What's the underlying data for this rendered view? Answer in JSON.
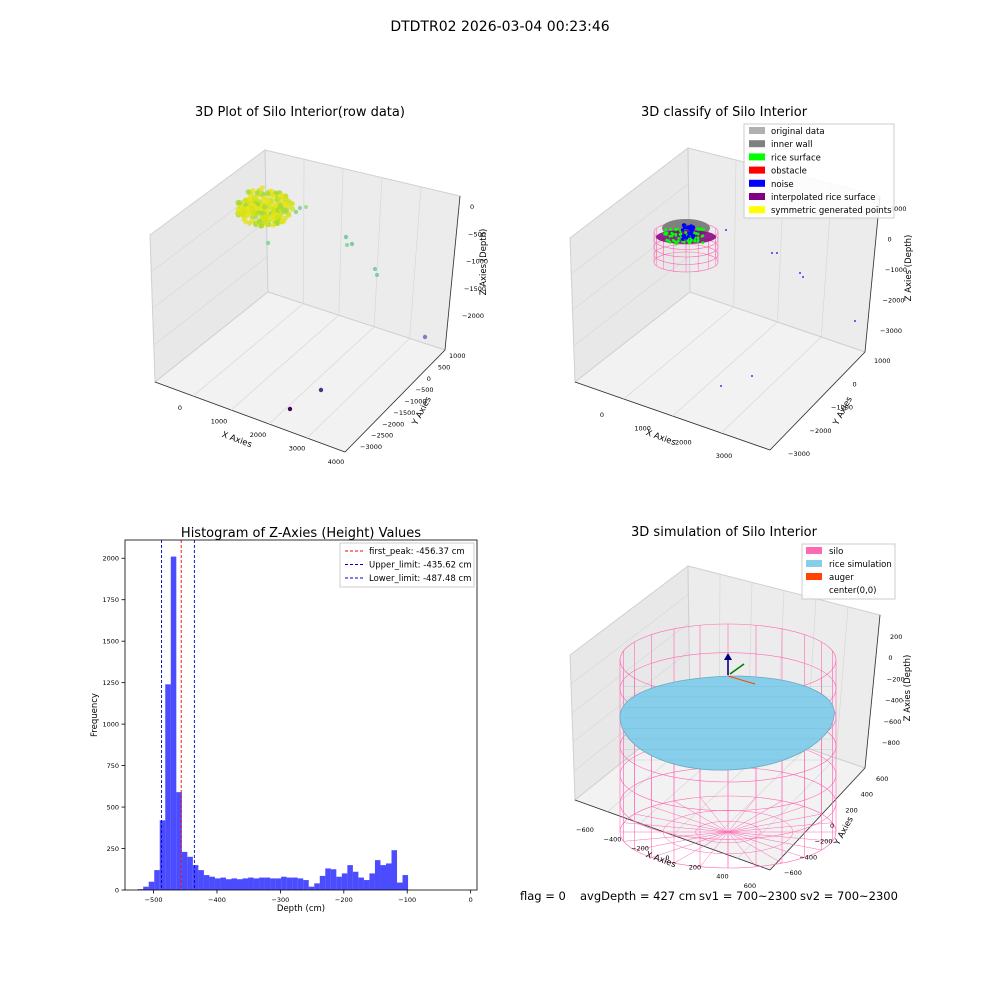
{
  "suptitle": "DTDTR02 2026-03-04 00:23:46",
  "status": {
    "flag": "flag = 0",
    "avg": "avgDepth = 427 cm",
    "sv1": "sv1 = 700~2300",
    "sv2": "sv2 = 700~2300"
  },
  "colors": {
    "hist_bar": "#0000ff",
    "peak_line": "#ff0000",
    "limit_line": "#0000cc",
    "silo": "#ff69b4",
    "rice_sim": "#87ceeb",
    "auger": "#ff4500",
    "original": "#b0b0b0",
    "inner_wall": "#808080",
    "rice_surface": "#00ff00",
    "obstacle": "#ff0000",
    "noise": "#0000ff",
    "interpolated": "#800080",
    "symmetric": "#ffff00",
    "pane": "#f2f2f2"
  },
  "chart_data": [
    {
      "type": "scatter",
      "projection": "3d",
      "title": "3D Plot of Silo Interior(row data)",
      "xlabel": "X Axies",
      "ylabel": "Y Axies",
      "zlabel": "Z Axies (Depth)",
      "x_ticks": [
        "0",
        "1000",
        "2000",
        "3000",
        "4000"
      ],
      "y_ticks": [
        "1000",
        "500",
        "0",
        "−500",
        "−1000",
        "−1500",
        "−2000",
        "−2500",
        "−3000"
      ],
      "z_ticks": [
        "0",
        "−500",
        "−1000",
        "−1500",
        "−2000"
      ],
      "colormap": "viridis",
      "cluster": {
        "x_range": [
          -300,
          400
        ],
        "y_range": [
          -500,
          500
        ],
        "z_range": [
          -600,
          -300
        ]
      },
      "points": [
        {
          "x": 900,
          "y": 300,
          "z": -900
        },
        {
          "x": 1100,
          "y": 250,
          "z": -1000
        },
        {
          "x": 1300,
          "y": 200,
          "z": -1050
        },
        {
          "x": 1950,
          "y": -200,
          "z": -1300
        },
        {
          "x": 2100,
          "y": -350,
          "z": -1350
        },
        {
          "x": 3300,
          "y": -1300,
          "z": -2000
        },
        {
          "x": 2800,
          "y": -2300,
          "z": -2200
        },
        {
          "x": 2600,
          "y": -2800,
          "z": -2300
        }
      ]
    },
    {
      "type": "scatter",
      "projection": "3d",
      "title": "3D classify of Silo Interior",
      "xlabel": "X Axies",
      "ylabel": "Y Axies",
      "zlabel": "Z Axies (Depth)",
      "x_ticks": [
        "0",
        "1000",
        "2000",
        "3000"
      ],
      "y_ticks": [
        "1000",
        "0",
        "−1000",
        "−2000",
        "−3000"
      ],
      "z_ticks": [
        "1000",
        "0",
        "−1000",
        "−2000",
        "−3000"
      ],
      "legend": [
        {
          "label": "original data",
          "color": "#b0b0b0"
        },
        {
          "label": "inner wall",
          "color": "#808080"
        },
        {
          "label": "rice surface",
          "color": "#00ff00"
        },
        {
          "label": "obstacle",
          "color": "#ff0000"
        },
        {
          "label": "noise",
          "color": "#0000ff"
        },
        {
          "label": "interpolated rice surface",
          "color": "#800080"
        },
        {
          "label": "symmetric generated points",
          "color": "#ffff00"
        }
      ],
      "legend_loc": "upper right"
    },
    {
      "type": "bar",
      "title": "Histogram of Z-Axies (Height) Values",
      "xlabel": "Depth (cm)",
      "ylabel": "Frequency",
      "xlim": [
        -545,
        10
      ],
      "ylim": [
        0,
        2110
      ],
      "x_ticks": [
        -500,
        -400,
        -300,
        -200,
        -100,
        0
      ],
      "x_tick_labels": [
        "−500",
        "−400",
        "−300",
        "−200",
        "−100",
        "0"
      ],
      "y_ticks": [
        0,
        250,
        500,
        750,
        1000,
        1250,
        1500,
        1750,
        2000
      ],
      "bin_start": -525,
      "bin_width": 8.7,
      "counts": [
        5,
        20,
        50,
        120,
        420,
        1240,
        2010,
        590,
        230,
        200,
        150,
        120,
        90,
        80,
        70,
        75,
        65,
        70,
        65,
        70,
        75,
        70,
        75,
        75,
        70,
        70,
        80,
        75,
        75,
        70,
        60,
        20,
        40,
        85,
        130,
        125,
        80,
        100,
        150,
        110,
        75,
        60,
        100,
        180,
        150,
        160,
        240,
        45,
        90
      ],
      "vlines": [
        {
          "x": -456.37,
          "label": "first_peak: -456.37 cm",
          "color": "#ff0000"
        },
        {
          "x": -435.62,
          "label": "Upper_limit: -435.62 cm",
          "color": "#0000cc"
        },
        {
          "x": -487.48,
          "label": "Lower_limit: -487.48 cm",
          "color": "#0000cc"
        }
      ],
      "legend_loc": "upper right"
    },
    {
      "type": "scatter",
      "projection": "3d",
      "title": "3D simulation of Silo Interior",
      "xlabel": "X Axies",
      "ylabel": "Y Axies",
      "zlabel": "Z Axies (Depth)",
      "x_ticks": [
        "−600",
        "−400",
        "−200",
        "0",
        "200",
        "400",
        "600"
      ],
      "y_ticks": [
        "600",
        "400",
        "200",
        "0",
        "−200",
        "−400",
        "−600"
      ],
      "z_ticks": [
        "200",
        "0",
        "−200",
        "−400",
        "−600",
        "−800"
      ],
      "legend": [
        {
          "label": "silo",
          "color": "#ff69b4"
        },
        {
          "label": "rice simulation",
          "color": "#87ceeb"
        },
        {
          "label": "auger",
          "color": "#ff4500"
        },
        {
          "label": "center(0,0)",
          "color": ""
        }
      ],
      "legend_loc": "upper right"
    }
  ]
}
